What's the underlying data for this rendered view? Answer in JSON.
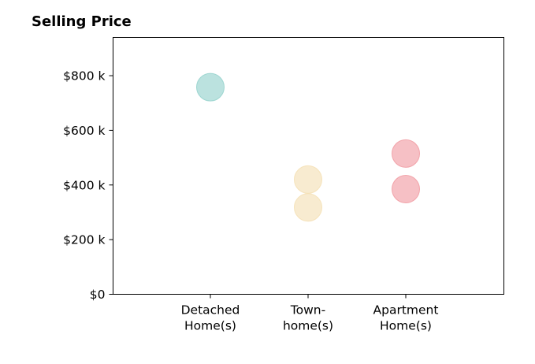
{
  "chart_data": {
    "type": "scatter",
    "title": "Selling Price",
    "xlabel": "",
    "ylabel": "",
    "categories": [
      [
        "Detached",
        "Home(s)"
      ],
      [
        "Town-",
        "home(s)"
      ],
      [
        "Apartment",
        "Home(s)"
      ]
    ],
    "ylim": [
      0,
      940000
    ],
    "y_ticks": [
      {
        "value": 0,
        "label": "$0"
      },
      {
        "value": 200000,
        "label": "$200 k"
      },
      {
        "value": 400000,
        "label": "$400 k"
      },
      {
        "value": 600000,
        "label": "$600 k"
      },
      {
        "value": 800000,
        "label": "$800 k"
      }
    ],
    "points": [
      {
        "category": 0,
        "y": 758000,
        "color": "#8ecfc9"
      },
      {
        "category": 1,
        "y": 420000,
        "color": "#f4deb0"
      },
      {
        "category": 1,
        "y": 318000,
        "color": "#f4deb0"
      },
      {
        "category": 2,
        "y": 515000,
        "color": "#f0969e"
      },
      {
        "category": 2,
        "y": 385000,
        "color": "#f0969e"
      }
    ],
    "grid": false,
    "legend": "none"
  }
}
